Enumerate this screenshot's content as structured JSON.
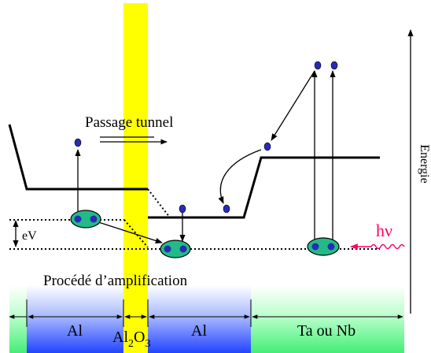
{
  "labels": {
    "passage_tunnel": "Passage tunnel",
    "energie": "Energie",
    "ev": "eV",
    "hnu": "hν",
    "procede": "Procédé d’amplification"
  },
  "regions": {
    "al_left": "Al",
    "al2o3_main": "Al",
    "al2o3_sub1": "2",
    "al2o3_mid": "O",
    "al2o3_sub2": "3",
    "al_right": "Al",
    "ta_nb": "Ta ou Nb"
  },
  "colors": {
    "barrier": "#ffff00",
    "electron": "#2a2ab8",
    "pair": "#22bb88",
    "hnu": "#ff0066",
    "al_band": "#3355ff",
    "ta_band": "#55ee88"
  }
}
